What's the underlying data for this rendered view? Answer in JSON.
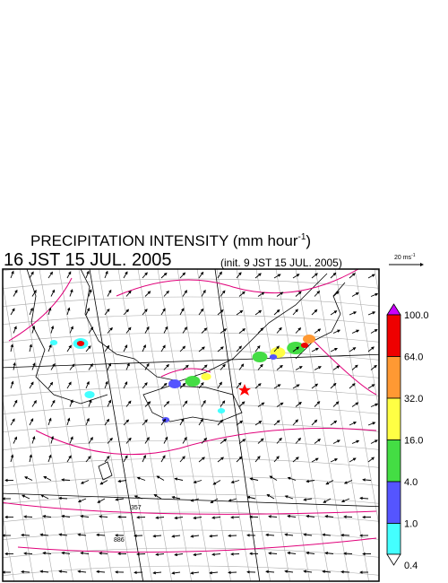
{
  "header": {
    "title": "PRECIPITATION INTENSITY (mm hour",
    "title_sup": "-1",
    "title_end": ")",
    "valid_time": "16 JST 15 JUL. 2005",
    "init_time": "(init. 9 JST 15 JUL. 2005)"
  },
  "wind_scale": {
    "label": "20 ms",
    "sup": "-1"
  },
  "colorbar": {
    "levels": [
      "100.0",
      "64.0",
      "32.0",
      "16.0",
      "4.0",
      "1.0",
      "0.4"
    ],
    "colors": [
      "#cc00ff",
      "#ee0000",
      "#ff9933",
      "#ffff44",
      "#44dd44",
      "#5555ff",
      "#44ffff",
      "#ffffff"
    ]
  },
  "contour_labels": [
    "357",
    "886"
  ]
}
